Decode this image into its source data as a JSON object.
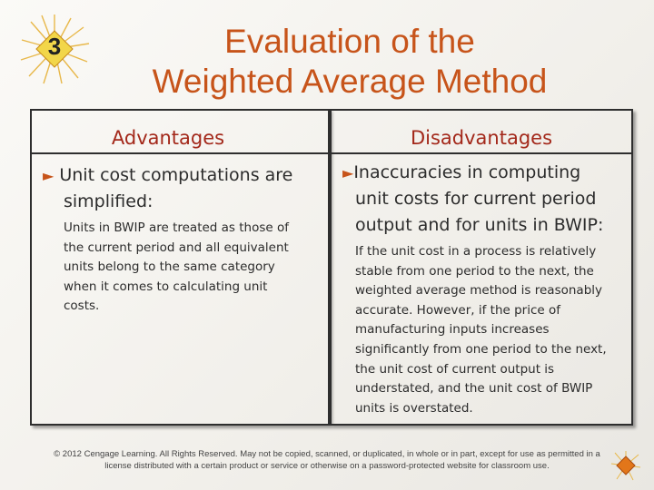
{
  "slide": {
    "number": "3",
    "title_line1": "Evaluation of the",
    "title_line2": "Weighted Average Method"
  },
  "advantages": {
    "heading": "Advantages",
    "bullet_line1": "Unit cost computations are",
    "bullet_line2": "simplified:",
    "detail_lines": [
      "Units in BWIP are treated as those of",
      "the  current period and all  equivalent",
      "units belong to the same category",
      "when it comes to calculating unit",
      "costs."
    ]
  },
  "disadvantages": {
    "heading": "Disadvantages",
    "bullet_lines": [
      "Inaccuracies in computing",
      "unit costs for current period",
      "output and for units in BWIP:"
    ],
    "detail_lines": [
      "If the unit cost in a process is relatively",
      "stable from one period to the next, the",
      "weighted average method is reasonably",
      "accurate. However, if the price of",
      "manufacturing inputs increases",
      "significantly from one period to the next,",
      "the unit cost of current output is",
      "understated, and the unit cost of BWIP",
      "units is overstated."
    ]
  },
  "footer": {
    "line1": "© 2012 Cengage Learning. All Rights Reserved. May not be copied, scanned, or duplicated, in whole or in part, except for use as permitted in a",
    "line2": "license distributed with a certain product or service or otherwise on a password-protected website for classroom use."
  },
  "colors": {
    "title": "#c7541a",
    "heading": "#a3281a",
    "bullet_arrow": "#c7541a",
    "badge": "#f2d64a"
  },
  "icons": {
    "badge": "starburst-badge-icon",
    "bullet": "triangle-bullet-icon",
    "corner": "diamond-nav-icon"
  }
}
